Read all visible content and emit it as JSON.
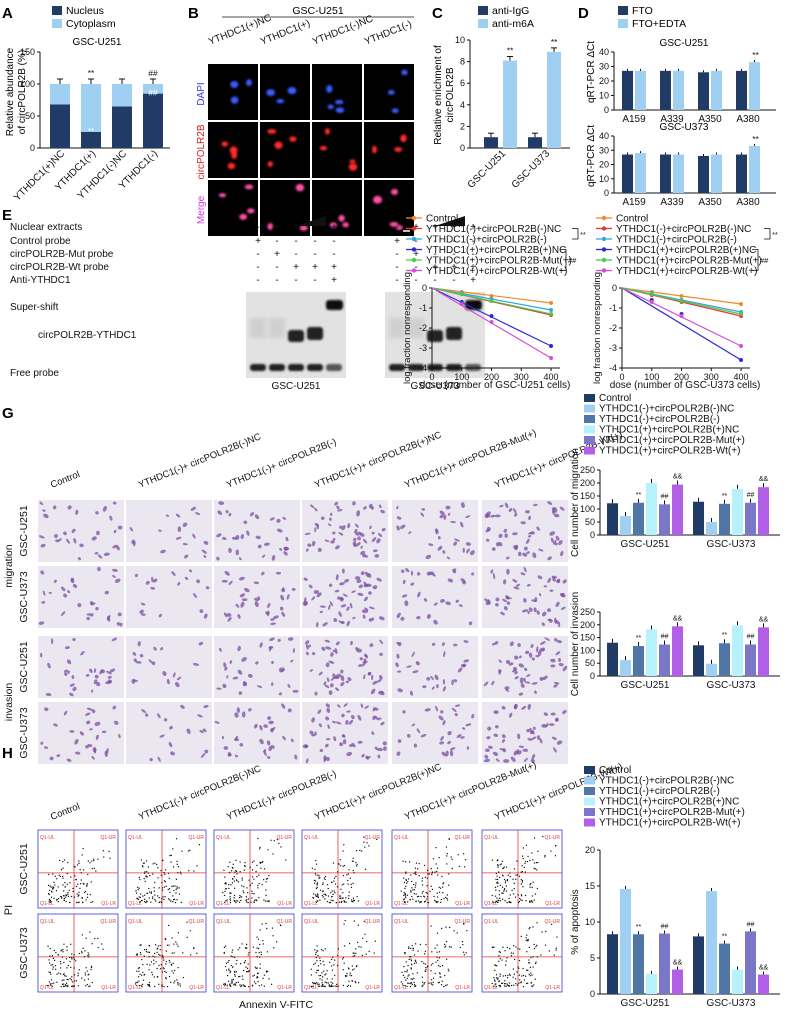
{
  "colors": {
    "nc_dark": "#1f3b66",
    "light_blue": "#9fd0f1",
    "steel": "#4f76a5",
    "cyan": "#b7f1fb",
    "slate": "#7b77c8",
    "magenta": "#b15fe6",
    "micro_bg": "#000000",
    "dapi": "#3a5bff",
    "polr": "#ff2a2a",
    "merge": "#ff4fa8",
    "transwell_bg": "#ebe7f0",
    "cell_purple": "#7c4fa3"
  },
  "panelA": {
    "letter": "A",
    "legend": [
      "Nucleus",
      "Cytoplasm"
    ],
    "subtitle": "GSC-U251",
    "ylabel_l1": "Relative abundance",
    "ylabel_l2": "of circPOLR2B (%)",
    "yticks": [
      "0",
      "50",
      "100",
      "150"
    ],
    "categories": [
      "YTHDC1(+)NC",
      "YTHDC1(+)",
      "YTHDC1(-)NC",
      "YTHDC1(-)"
    ],
    "annotations": [
      "**",
      "**",
      "##",
      "##"
    ]
  },
  "panelB": {
    "letter": "B",
    "title": "GSC-U251",
    "columns": [
      "YTHDC1(+)NC",
      "YTHDC1(+)",
      "YTHDC1(-)NC",
      "YTHDC1(-)"
    ],
    "rows": [
      "DAPI",
      "circPOLR2B",
      "Merge"
    ]
  },
  "panelC": {
    "letter": "C",
    "legend": [
      "anti-IgG",
      "anti-m6A"
    ],
    "ylabel_l1": "Relative enrichment of",
    "ylabel_l2": "circPOLR2B",
    "yticks": [
      "0",
      "2",
      "4",
      "6",
      "8",
      "10"
    ],
    "categories": [
      "GSC-U251",
      "GSC-U373"
    ],
    "annotations": [
      "**",
      "**"
    ]
  },
  "panelD": {
    "letter": "D",
    "legend": [
      "FTO",
      "FTO+EDTA"
    ],
    "ylabel": "qRT-PCR ΔCt",
    "titles": [
      "GSC-U251",
      "GSC-U373"
    ],
    "yticks": [
      "0",
      "10",
      "20",
      "30",
      "40"
    ],
    "categories": [
      "A159",
      "A339",
      "A350",
      "A380"
    ],
    "annotation": "**"
  },
  "panelE": {
    "letter": "E",
    "rows": [
      "Nuclear extracts",
      "Control probe",
      "circPOLR2B-Mut probe",
      "circPOLR2B-Wt probe",
      "Anti-YTHDC1"
    ],
    "signs": [
      [
        "-",
        "+",
        "+",
        "+",
        "+"
      ],
      [
        "+",
        "-",
        "-",
        "-",
        "-"
      ],
      [
        "-",
        "+",
        "-",
        "-",
        "-"
      ],
      [
        "-",
        "-",
        "+",
        "+",
        "+"
      ],
      [
        "-",
        "-",
        "-",
        "-",
        "+"
      ]
    ],
    "bands": [
      "Super-shift",
      "circPOLR2B-YTHDC1",
      "Free probe"
    ],
    "gels": [
      "GSC-U251",
      "GSC-U373"
    ]
  },
  "panelF": {
    "letter": "F",
    "legend": [
      "Control",
      "YTHDC1(-)+circPOLR2B(-)NC",
      "YTHDC1(-)+circPOLR2B(-)",
      "YTHDC1(+)+circPOLR2B(+)NC",
      "YTHDC1(+)+circPOLR2B-Mut(+)",
      "YTHDC1(+)+circPOLR2B-Wt(+)"
    ],
    "line_colors": [
      "#f08a2a",
      "#e53935",
      "#35a7e0",
      "#2b2bd6",
      "#4cc94c",
      "#d64ed6"
    ],
    "sig": [
      "**",
      "**",
      "**",
      "##",
      "##"
    ],
    "ylabel": "log fraction nonresponding",
    "yticks": [
      "0",
      "-1",
      "-2",
      "-3",
      "-4"
    ],
    "xticks": [
      "0",
      "100",
      "200",
      "300",
      "400"
    ],
    "xlabels": [
      "dose (number of GSC-U251 cells)",
      "dose (number of GSC-U373 cells)"
    ]
  },
  "panelG": {
    "letter": "G",
    "columns": [
      "Control",
      "YTHDC1(-)+ circPOLR2B(-)NC",
      "YTHDC1(-)+ circPOLR2B(-)",
      "YTHDC1(+)+ circPOLR2B(+)NC",
      "YTHDC1(+)+ circPOLR2B-Mut(+)",
      "YTHDC1(+)+ circPOLR2B-Wt(+)"
    ],
    "groups": [
      "migration",
      "invasion"
    ],
    "rows": [
      "GSC-U251",
      "GSC-U373"
    ],
    "legend": [
      "Control",
      "YTHDC1(-)+circPOLR2B(-)NC",
      "YTHDC1(-)+circPOLR2B(-)",
      "YTHDC1(+)+circPOLR2B(+)NC",
      "YTHDC1(+)+circPOLR2B-Mut(+)",
      "YTHDC1(+)+circPOLR2B-Wt(+)"
    ],
    "ylabels": [
      "Cell number of migration",
      "Cell number of invasion"
    ],
    "yticks": [
      "0",
      "50",
      "100",
      "150",
      "200",
      "250"
    ],
    "categories": [
      "GSC-U251",
      "GSC-U373"
    ],
    "annot": [
      "",
      "",
      "**",
      "",
      "##",
      "&&"
    ]
  },
  "panelH": {
    "letter": "H",
    "columns": [
      "Control",
      "YTHDC1(-)+ circPOLR2B(-)NC",
      "YTHDC1(-)+ circPOLR2B(-)",
      "YTHDC1(+)+ circPOLR2B(+)NC",
      "YTHDC1(+)+ circPOLR2B-Mut(+)",
      "YTHDC1(+)+ circPOLR2B-Wt(+)"
    ],
    "rows": [
      "GSC-U251",
      "GSC-U373"
    ],
    "ylabel": "PI",
    "xlabel": "Annexin V-FITC",
    "quad_labels": [
      "Q1-UL",
      "Q1-UR",
      "Q1-LL",
      "Q1-LR"
    ],
    "legend": [
      "Control",
      "YTHDC1(-)+circPOLR2B(-)NC",
      "YTHDC1(-)+circPOLR2B(-)",
      "YTHDC1(+)+circPOLR2B(+)NC",
      "YTHDC1(+)+circPOLR2B-Mut(+)",
      "YTHDC1(+)+circPOLR2B-Wt(+)"
    ],
    "ylabel_bar": "% of apoptosis",
    "yticks": [
      "0",
      "5",
      "10",
      "15",
      "20"
    ],
    "categories": [
      "GSC-U251",
      "GSC-U373"
    ],
    "annot": [
      "",
      "",
      "**",
      "",
      "##",
      "&&"
    ]
  },
  "chart_data": [
    {
      "panel": "A",
      "type": "bar",
      "stacked": true,
      "categories": [
        "YTHDC1(+)NC",
        "YTHDC1(+)",
        "YTHDC1(-)NC",
        "YTHDC1(-)"
      ],
      "series": [
        {
          "name": "Nucleus",
          "values": [
            68,
            25,
            65,
            85
          ]
        },
        {
          "name": "Cytoplasm",
          "values": [
            32,
            75,
            35,
            15
          ]
        }
      ],
      "ylabel": "Relative abundance of circPOLR2B (%)",
      "ylim": [
        0,
        150
      ]
    },
    {
      "panel": "C",
      "type": "bar",
      "categories": [
        "GSC-U251",
        "GSC-U373"
      ],
      "series": [
        {
          "name": "anti-IgG",
          "values": [
            1.0,
            1.0
          ]
        },
        {
          "name": "anti-m6A",
          "values": [
            8.1,
            8.9
          ]
        }
      ],
      "ylabel": "Relative enrichment of circPOLR2B",
      "ylim": [
        0,
        10
      ]
    },
    {
      "panel": "D-U251",
      "type": "bar",
      "title": "GSC-U251",
      "categories": [
        "A159",
        "A339",
        "A350",
        "A380"
      ],
      "series": [
        {
          "name": "FTO",
          "values": [
            27,
            27,
            26,
            27
          ]
        },
        {
          "name": "FTO+EDTA",
          "values": [
            27,
            27,
            27,
            33
          ]
        }
      ],
      "ylabel": "qRT-PCR ΔCt",
      "ylim": [
        0,
        40
      ]
    },
    {
      "panel": "D-U373",
      "type": "bar",
      "title": "GSC-U373",
      "categories": [
        "A159",
        "A339",
        "A350",
        "A380"
      ],
      "series": [
        {
          "name": "FTO",
          "values": [
            27,
            27,
            26,
            27
          ]
        },
        {
          "name": "FTO+EDTA",
          "values": [
            28,
            27,
            27,
            33
          ]
        }
      ],
      "ylabel": "qRT-PCR ΔCt",
      "ylim": [
        0,
        40
      ]
    },
    {
      "panel": "F-U251",
      "type": "line",
      "x": [
        0,
        100,
        200,
        400
      ],
      "series": [
        {
          "name": "Control",
          "values": [
            0,
            -0.2,
            -0.4,
            -0.75
          ]
        },
        {
          "name": "YTHDC1(-)+circPOLR2B(-)NC",
          "values": [
            0,
            -0.3,
            -0.65,
            -1.35
          ]
        },
        {
          "name": "YTHDC1(-)+circPOLR2B(-)",
          "values": [
            0,
            -0.25,
            -0.55,
            -1.1
          ]
        },
        {
          "name": "YTHDC1(+)+circPOLR2B(+)NC",
          "values": [
            0,
            -0.7,
            -1.4,
            -2.9
          ]
        },
        {
          "name": "YTHDC1(+)+circPOLR2B-Mut(+)",
          "values": [
            0,
            -0.3,
            -0.65,
            -1.3
          ]
        },
        {
          "name": "YTHDC1(+)+circPOLR2B-Wt(+)",
          "values": [
            0,
            -0.8,
            -1.7,
            -3.5
          ]
        }
      ],
      "xlabel": "dose (number of GSC-U251 cells)",
      "ylabel": "log fraction nonresponding",
      "xlim": [
        0,
        400
      ],
      "ylim": [
        -4,
        0
      ]
    },
    {
      "panel": "F-U373",
      "type": "line",
      "x": [
        0,
        100,
        200,
        400
      ],
      "series": [
        {
          "name": "Control",
          "values": [
            0,
            -0.2,
            -0.4,
            -0.8
          ]
        },
        {
          "name": "YTHDC1(-)+circPOLR2B(-)NC",
          "values": [
            0,
            -0.35,
            -0.7,
            -1.4
          ]
        },
        {
          "name": "YTHDC1(-)+circPOLR2B(-)",
          "values": [
            0,
            -0.25,
            -0.6,
            -1.2
          ]
        },
        {
          "name": "YTHDC1(+)+circPOLR2B(+)NC",
          "values": [
            0,
            -0.6,
            -1.3,
            -3.6
          ]
        },
        {
          "name": "YTHDC1(+)+circPOLR2B-Mut(+)",
          "values": [
            0,
            -0.3,
            -0.65,
            -1.3
          ]
        },
        {
          "name": "YTHDC1(+)+circPOLR2B-Wt(+)",
          "values": [
            0,
            -0.7,
            -1.4,
            -2.9
          ]
        }
      ],
      "xlabel": "dose (number of GSC-U373 cells)",
      "ylabel": "log fraction nonresponding",
      "xlim": [
        0,
        400
      ],
      "ylim": [
        -4,
        0
      ]
    },
    {
      "panel": "G-migration",
      "type": "bar",
      "categories": [
        "GSC-U251",
        "GSC-U373"
      ],
      "series": [
        {
          "name": "Control",
          "values": [
            122,
            128
          ]
        },
        {
          "name": "YTHDC1(-)+circPOLR2B(-)NC",
          "values": [
            73,
            50
          ]
        },
        {
          "name": "YTHDC1(-)+circPOLR2B(-)",
          "values": [
            124,
            120
          ]
        },
        {
          "name": "YTHDC1(+)+circPOLR2B(+)NC",
          "values": [
            200,
            178
          ]
        },
        {
          "name": "YTHDC1(+)+circPOLR2B-Mut(+)",
          "values": [
            118,
            124
          ]
        },
        {
          "name": "YTHDC1(+)+circPOLR2B-Wt(+)",
          "values": [
            194,
            184
          ]
        }
      ],
      "ylabel": "Cell number of migration",
      "ylim": [
        0,
        250
      ]
    },
    {
      "panel": "G-invasion",
      "type": "bar",
      "categories": [
        "GSC-U251",
        "GSC-U373"
      ],
      "series": [
        {
          "name": "Control",
          "values": [
            130,
            120
          ]
        },
        {
          "name": "YTHDC1(-)+circPOLR2B(-)NC",
          "values": [
            62,
            48
          ]
        },
        {
          "name": "YTHDC1(-)+circPOLR2B(-)",
          "values": [
            117,
            128
          ]
        },
        {
          "name": "YTHDC1(+)+circPOLR2B(+)NC",
          "values": [
            182,
            198
          ]
        },
        {
          "name": "YTHDC1(+)+circPOLR2B-Mut(+)",
          "values": [
            123,
            123
          ]
        },
        {
          "name": "YTHDC1(+)+circPOLR2B-Wt(+)",
          "values": [
            194,
            190
          ]
        }
      ],
      "ylabel": "Cell number of invasion",
      "ylim": [
        0,
        250
      ]
    },
    {
      "panel": "H",
      "type": "bar",
      "categories": [
        "GSC-U251",
        "GSC-U373"
      ],
      "series": [
        {
          "name": "Control",
          "values": [
            8.3,
            8.0
          ]
        },
        {
          "name": "YTHDC1(-)+circPOLR2B(-)NC",
          "values": [
            14.6,
            14.3
          ]
        },
        {
          "name": "YTHDC1(-)+circPOLR2B(-)",
          "values": [
            8.3,
            7.0
          ]
        },
        {
          "name": "YTHDC1(+)+circPOLR2B(+)NC",
          "values": [
            2.8,
            3.4
          ]
        },
        {
          "name": "YTHDC1(+)+circPOLR2B-Mut(+)",
          "values": [
            8.4,
            8.7
          ]
        },
        {
          "name": "YTHDC1(+)+circPOLR2B-Wt(+)",
          "values": [
            3.4,
            2.7
          ]
        }
      ],
      "ylabel": "% of apoptosis",
      "ylim": [
        0,
        20
      ]
    }
  ]
}
